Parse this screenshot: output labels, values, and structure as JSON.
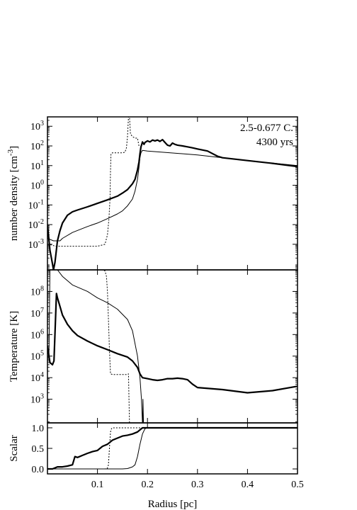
{
  "chart_data": [
    {
      "type": "line",
      "panel": "density",
      "ylabel": "number density [cm",
      "ylabel_sup": "-3",
      "ylabel_tail": "]",
      "yscale": "log",
      "xlim": [
        0.0,
        0.5
      ],
      "ylim": [
        5e-05,
        3000
      ],
      "yticks": [
        {
          "value": 1000,
          "base": "10",
          "exp": "3"
        },
        {
          "value": 100,
          "base": "10",
          "exp": "2"
        },
        {
          "value": 10,
          "base": "10",
          "exp": "1"
        },
        {
          "value": 1,
          "base": "10",
          "exp": "0"
        },
        {
          "value": 0.1,
          "base": "10",
          "exp": "-1"
        },
        {
          "value": 0.01,
          "base": "10",
          "exp": "-2"
        },
        {
          "value": 0.001,
          "base": "10",
          "exp": "-3"
        }
      ],
      "annotation": [
        "2.5-0.677 C.",
        "4300 yrs"
      ],
      "series": [
        {
          "style": "thick",
          "x": [
            0.0,
            0.005,
            0.01,
            0.012,
            0.015,
            0.02,
            0.025,
            0.03,
            0.04,
            0.05,
            0.06,
            0.08,
            0.1,
            0.12,
            0.14,
            0.15,
            0.16,
            0.17,
            0.175,
            0.18,
            0.183,
            0.185,
            0.187,
            0.189,
            0.19,
            0.193,
            0.195,
            0.2,
            0.205,
            0.21,
            0.215,
            0.22,
            0.225,
            0.23,
            0.235,
            0.24,
            0.245,
            0.25,
            0.255,
            0.26,
            0.27,
            0.28,
            0.29,
            0.3,
            0.32,
            0.34,
            0.35,
            0.4,
            0.45,
            0.5
          ],
          "y": [
            0.01,
            0.0005,
            0.0001,
            5e-05,
            0.00012,
            0.0015,
            0.005,
            0.012,
            0.03,
            0.045,
            0.055,
            0.08,
            0.12,
            0.18,
            0.28,
            0.4,
            0.6,
            1.2,
            2.0,
            6.0,
            15,
            40,
            90,
            130,
            160,
            120,
            150,
            180,
            160,
            200,
            180,
            200,
            170,
            210,
            150,
            110,
            100,
            140,
            120,
            110,
            100,
            90,
            80,
            70,
            55,
            30,
            25,
            18,
            13,
            9
          ]
        },
        {
          "style": "thin",
          "x": [
            0.0,
            0.012,
            0.015,
            0.017,
            0.02,
            0.025,
            0.03,
            0.05,
            0.08,
            0.1,
            0.12,
            0.14,
            0.15,
            0.16,
            0.17,
            0.175,
            0.18,
            0.183,
            0.185,
            0.187,
            0.19,
            0.2,
            0.3,
            0.4,
            0.5
          ],
          "y": [
            0.002,
            0.0015,
            0.0015,
            0.0015,
            0.0015,
            0.0015,
            0.002,
            0.004,
            0.008,
            0.012,
            0.02,
            0.035,
            0.05,
            0.09,
            0.2,
            0.5,
            2.0,
            8.0,
            25,
            45,
            60,
            55,
            35,
            18,
            10
          ]
        },
        {
          "style": "dotted",
          "x": [
            0.0,
            0.01,
            0.015,
            0.02,
            0.03,
            0.05,
            0.08,
            0.1,
            0.115,
            0.12,
            0.123,
            0.125,
            0.126,
            0.127,
            0.13,
            0.14,
            0.15,
            0.155,
            0.158,
            0.16,
            0.162,
            0.163,
            0.164,
            0.166,
            0.17,
            0.175,
            0.18,
            0.183
          ],
          "y": [
            0.001,
            0.0009,
            0.0008,
            0.0008,
            0.0008,
            0.0008,
            0.0008,
            0.0008,
            0.001,
            0.003,
            0.02,
            0.2,
            5,
            40,
            45,
            45,
            45,
            48,
            80,
            300,
            3000,
            3000,
            3000,
            400,
            300,
            250,
            250,
            100
          ]
        }
      ]
    },
    {
      "type": "line",
      "panel": "temperature",
      "ylabel": "Temperature [K]",
      "yscale": "log",
      "xlim": [
        0.0,
        0.5
      ],
      "ylim": [
        80,
        1000000000
      ],
      "yticks": [
        {
          "value": 100000000,
          "base": "10",
          "exp": "8"
        },
        {
          "value": 10000000,
          "base": "10",
          "exp": "7"
        },
        {
          "value": 1000000,
          "base": "10",
          "exp": "6"
        },
        {
          "value": 100000,
          "base": "10",
          "exp": "5"
        },
        {
          "value": 10000,
          "base": "10",
          "exp": "4"
        },
        {
          "value": 1000,
          "base": "10",
          "exp": "3"
        }
      ],
      "series": [
        {
          "style": "thick",
          "x": [
            0.0,
            0.005,
            0.01,
            0.013,
            0.018,
            0.02,
            0.025,
            0.03,
            0.04,
            0.05,
            0.06,
            0.08,
            0.1,
            0.12,
            0.14,
            0.16,
            0.17,
            0.18,
            0.185,
            0.19,
            0.2,
            0.21,
            0.22,
            0.23,
            0.24,
            0.25,
            0.26,
            0.27,
            0.28,
            0.29,
            0.3,
            0.35,
            0.4,
            0.45,
            0.5
          ],
          "y": [
            300000,
            50000,
            40000,
            60000,
            80000000,
            50000000,
            20000000,
            8000000,
            3000000,
            1500000,
            900000,
            500000,
            300000,
            200000,
            130000,
            90000,
            60000,
            30000,
            15000,
            10000,
            9000,
            8000,
            7500,
            8000,
            9000,
            9000,
            9500,
            9000,
            8000,
            5000,
            3500,
            2800,
            2000,
            2500,
            4000
          ]
        },
        {
          "style": "thin",
          "x": [
            0.0,
            0.003,
            0.005,
            0.008,
            0.01,
            0.015,
            0.02,
            0.03,
            0.05,
            0.08,
            0.1,
            0.12,
            0.14,
            0.16,
            0.17,
            0.18,
            0.185,
            0.188,
            0.19,
            0.1905,
            0.191,
            0.192,
            0.193,
            0.2,
            0.3,
            0.5
          ],
          "y": [
            100000,
            100000,
            1000000000,
            1000000000,
            1000000000,
            1000000000,
            1000000000,
            500000000,
            200000000,
            100000000,
            50000000,
            30000000,
            15000000,
            5000000,
            1500000,
            100000,
            10000,
            1000,
            80,
            80,
            1000,
            80,
            80,
            80,
            80,
            80
          ]
        },
        {
          "style": "dotted",
          "x": [
            0.0,
            0.005,
            0.01,
            0.03,
            0.05,
            0.08,
            0.1,
            0.11,
            0.115,
            0.118,
            0.12,
            0.122,
            0.124,
            0.126,
            0.13,
            0.14,
            0.15,
            0.155,
            0.158,
            0.16,
            0.162,
            0.163,
            0.164
          ],
          "y": [
            1000000000,
            1000000000,
            1000000000,
            1000000000,
            1000000000,
            1000000000,
            1000000000,
            1000000000,
            900000000,
            500000000,
            100000000,
            5000000,
            200000,
            15000,
            14000,
            14000,
            14000,
            14000,
            14000,
            14000,
            15000,
            1000,
            80
          ]
        }
      ]
    },
    {
      "type": "line",
      "panel": "scalar",
      "ylabel": "Scalar",
      "xlabel": "Radius [pc]",
      "yscale": "linear",
      "xlim": [
        0.0,
        0.5
      ],
      "ylim": [
        -0.12,
        1.12
      ],
      "yticks": [
        {
          "value": 1.0,
          "label": "1.0"
        },
        {
          "value": 0.5,
          "label": "0.5"
        },
        {
          "value": 0.0,
          "label": "0.0"
        }
      ],
      "xticks": [
        {
          "value": 0.1,
          "label": "0.1"
        },
        {
          "value": 0.2,
          "label": "0.2"
        },
        {
          "value": 0.3,
          "label": "0.3"
        },
        {
          "value": 0.4,
          "label": "0.4"
        },
        {
          "value": 0.5,
          "label": "0.5"
        }
      ],
      "series": [
        {
          "style": "thick",
          "x": [
            0.0,
            0.01,
            0.02,
            0.025,
            0.03,
            0.04,
            0.05,
            0.055,
            0.06,
            0.07,
            0.08,
            0.09,
            0.1,
            0.11,
            0.12,
            0.13,
            0.14,
            0.15,
            0.16,
            0.17,
            0.18,
            0.185,
            0.19,
            0.5
          ],
          "y": [
            0.0,
            0.0,
            0.05,
            0.05,
            0.05,
            0.07,
            0.1,
            0.3,
            0.28,
            0.33,
            0.38,
            0.42,
            0.45,
            0.55,
            0.6,
            0.7,
            0.75,
            0.8,
            0.82,
            0.85,
            0.9,
            0.95,
            1.0,
            1.0
          ]
        },
        {
          "style": "thin",
          "x": [
            0.0,
            0.15,
            0.16,
            0.17,
            0.175,
            0.18,
            0.185,
            0.19,
            0.195,
            0.2,
            0.5
          ],
          "y": [
            0.0,
            0.0,
            0.01,
            0.05,
            0.1,
            0.3,
            0.6,
            0.85,
            0.98,
            1.0,
            1.0
          ]
        },
        {
          "style": "dotted",
          "x": [
            0.0,
            0.115,
            0.12,
            0.122,
            0.124,
            0.126,
            0.128,
            0.13,
            0.15,
            0.5
          ],
          "y": [
            0.0,
            0.0,
            0.02,
            0.1,
            0.5,
            0.9,
            0.98,
            1.0,
            1.0,
            1.0
          ]
        }
      ]
    }
  ]
}
